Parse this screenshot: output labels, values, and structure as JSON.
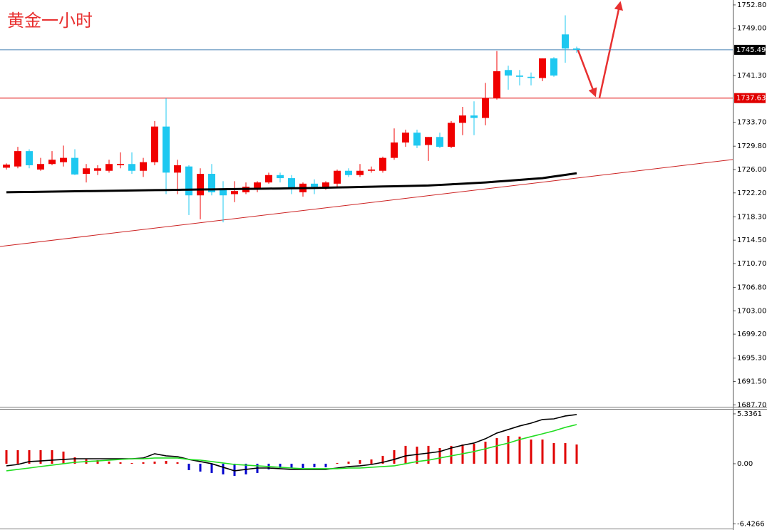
{
  "chart_data": [
    {
      "type": "candlestick",
      "title": "黄金一小时",
      "open": [
        1726.3,
        1726.5,
        1729.0,
        1726.0,
        1726.9,
        1727.2,
        1727.9,
        1725.3,
        1725.8,
        1725.8,
        1726.7,
        1726.9,
        1725.8,
        1727.2,
        1733.0,
        1725.5,
        1726.5,
        1721.8,
        1725.3,
        1722.7,
        1722.0,
        1722.3,
        1723.0,
        1723.9,
        1725.1,
        1724.6,
        1722.3,
        1723.7,
        1723.2,
        1723.7,
        1725.8,
        1725.1,
        1725.8,
        1725.8,
        1727.9,
        1730.4,
        1732.0,
        1730.0,
        1731.3,
        1729.7,
        1733.6,
        1734.8,
        1734.4,
        1737.6,
        1742.2,
        1741.3,
        1741.1,
        1740.9,
        1744.1,
        1748.0,
        1745.7
      ],
      "high": [
        1727.0,
        1729.7,
        1729.3,
        1727.9,
        1729.0,
        1729.9,
        1729.3,
        1726.9,
        1726.7,
        1727.6,
        1728.8,
        1728.8,
        1727.9,
        1733.9,
        1737.6,
        1727.6,
        1726.7,
        1726.2,
        1726.9,
        1724.1,
        1724.1,
        1723.9,
        1724.1,
        1725.5,
        1725.5,
        1725.1,
        1723.9,
        1724.4,
        1724.1,
        1726.0,
        1726.2,
        1726.9,
        1726.5,
        1728.1,
        1732.7,
        1732.5,
        1732.5,
        1731.3,
        1732.0,
        1733.9,
        1736.2,
        1737.1,
        1740.1,
        1745.3,
        1742.9,
        1742.2,
        1741.8,
        1744.1,
        1744.3,
        1751.1,
        1746.0
      ],
      "low": [
        1726.0,
        1726.2,
        1726.2,
        1725.8,
        1726.7,
        1726.5,
        1725.1,
        1723.9,
        1725.1,
        1725.5,
        1726.2,
        1725.3,
        1724.8,
        1726.7,
        1722.0,
        1722.0,
        1718.6,
        1717.9,
        1721.8,
        1717.4,
        1720.7,
        1722.0,
        1722.3,
        1723.7,
        1723.9,
        1722.0,
        1721.6,
        1722.0,
        1722.7,
        1723.2,
        1724.8,
        1724.8,
        1725.5,
        1725.5,
        1727.6,
        1729.7,
        1729.5,
        1727.4,
        1729.5,
        1729.5,
        1731.6,
        1731.6,
        1733.2,
        1737.4,
        1739.0,
        1739.7,
        1739.7,
        1740.4,
        1741.1,
        1743.4,
        1745.0
      ],
      "close": [
        1726.8,
        1729.0,
        1726.7,
        1726.9,
        1727.6,
        1727.9,
        1725.2,
        1726.2,
        1726.2,
        1726.9,
        1726.9,
        1725.8,
        1727.2,
        1733.0,
        1725.5,
        1726.7,
        1721.8,
        1725.3,
        1722.3,
        1721.8,
        1722.5,
        1723.2,
        1723.9,
        1725.1,
        1724.6,
        1723.0,
        1723.7,
        1723.2,
        1723.9,
        1725.8,
        1725.1,
        1725.8,
        1726.0,
        1727.9,
        1730.4,
        1732.0,
        1729.9,
        1731.3,
        1729.7,
        1733.6,
        1734.8,
        1734.4,
        1737.6,
        1742.0,
        1741.3,
        1741.1,
        1740.9,
        1744.1,
        1741.3,
        1745.7,
        1745.5
      ],
      "up_color": "#f00000",
      "down_color": "#1ec8f0",
      "ma": {
        "color": "#000000",
        "values": [
          1722.3,
          1722.33,
          1722.35,
          1722.38,
          1722.4,
          1722.43,
          1722.46,
          1722.49,
          1722.51,
          1722.54,
          1722.57,
          1722.59,
          1722.62,
          1722.65,
          1722.67,
          1722.7,
          1722.72,
          1722.75,
          1722.77,
          1722.8,
          1722.82,
          1722.85,
          1722.87,
          1722.9,
          1722.92,
          1722.95,
          1722.97,
          1723.0,
          1723.04,
          1723.08,
          1723.12,
          1723.16,
          1723.2,
          1723.24,
          1723.28,
          1723.32,
          1723.36,
          1723.4,
          1723.5,
          1723.6,
          1723.7,
          1723.8,
          1723.9,
          1724.04,
          1724.18,
          1724.32,
          1724.46,
          1724.6,
          1724.87,
          1725.13,
          1725.4
        ]
      },
      "price_lines": [
        {
          "value": 1745.49,
          "color": "#4682b4",
          "label_color": "#000000"
        },
        {
          "value": 1737.63,
          "color": "#e00000",
          "label_color": "#e00000"
        }
      ],
      "ylim": [
        1687.5,
        1753.6
      ],
      "yticks": [
        {
          "value": 1752.8,
          "label": "1752.80"
        },
        {
          "value": 1749,
          "label": "1749.00"
        },
        {
          "value": 1741.3,
          "label": "1741.30"
        },
        {
          "value": 1733.7,
          "label": "1733.70"
        },
        {
          "value": 1729.8,
          "label": "1729.80"
        },
        {
          "value": 1726,
          "label": "1726.00"
        },
        {
          "value": 1722.2,
          "label": "1722.20"
        },
        {
          "value": 1718.3,
          "label": "1718.30"
        },
        {
          "value": 1714.5,
          "label": "1714.50"
        },
        {
          "value": 1710.7,
          "label": "1710.70"
        },
        {
          "value": 1706.8,
          "label": "1706.80"
        },
        {
          "value": 1703,
          "label": "1703.00"
        },
        {
          "value": 1699.2,
          "label": "1699.20"
        },
        {
          "value": 1695.3,
          "label": "1695.30"
        },
        {
          "value": 1691.5,
          "label": "1691.50"
        },
        {
          "value": 1687.7,
          "label": "1687.70"
        }
      ]
    },
    {
      "type": "macd",
      "histogram": {
        "pos_color": "#e00000",
        "neg_color": "#0000cc",
        "values": [
          1.45,
          1.45,
          1.45,
          1.45,
          1.45,
          1.3,
          0.69,
          0.46,
          0.38,
          0.23,
          0.15,
          0.08,
          0.15,
          0.23,
          0.3,
          0.15,
          -0.69,
          -0.84,
          -0.99,
          -1.14,
          -1.3,
          -1.14,
          -0.99,
          -0.61,
          -0.46,
          -0.46,
          -0.46,
          -0.38,
          -0.38,
          0.08,
          0.23,
          0.38,
          0.46,
          0.84,
          1.45,
          1.91,
          1.83,
          1.91,
          1.68,
          1.91,
          2.06,
          2.13,
          2.36,
          2.74,
          2.97,
          2.9,
          2.59,
          2.59,
          2.21,
          2.21,
          2.06
        ]
      },
      "series": [
        {
          "color": "#000000",
          "values": [
            -0.23,
            -0.08,
            0.23,
            0.3,
            0.38,
            0.46,
            0.53,
            0.53,
            0.53,
            0.53,
            0.53,
            0.53,
            0.61,
            1.07,
            0.84,
            0.76,
            0.46,
            0.23,
            0,
            -0.38,
            -0.76,
            -0.61,
            -0.46,
            -0.46,
            -0.53,
            -0.61,
            -0.61,
            -0.61,
            -0.61,
            -0.46,
            -0.3,
            -0.23,
            -0.08,
            0.15,
            0.46,
            0.84,
            0.99,
            1.14,
            1.3,
            1.68,
            1.98,
            2.21,
            2.67,
            3.28,
            3.66,
            4.04,
            4.34,
            4.73,
            4.8,
            5.11,
            5.26
          ]
        },
        {
          "color": "#22dd22",
          "values": [
            -0.76,
            -0.61,
            -0.46,
            -0.3,
            -0.15,
            0,
            0.15,
            0.23,
            0.3,
            0.38,
            0.46,
            0.53,
            0.53,
            0.61,
            0.61,
            0.61,
            0.46,
            0.38,
            0.23,
            0.08,
            -0.08,
            -0.15,
            -0.23,
            -0.3,
            -0.38,
            -0.46,
            -0.53,
            -0.53,
            -0.53,
            -0.53,
            -0.46,
            -0.46,
            -0.38,
            -0.3,
            -0.23,
            0,
            0.23,
            0.38,
            0.61,
            0.84,
            1.07,
            1.3,
            1.6,
            1.91,
            2.21,
            2.59,
            2.9,
            3.2,
            3.51,
            3.89,
            4.19
          ]
        }
      ],
      "ylim": [
        -6.94,
        5.79
      ],
      "yticks": [
        5.3361,
        {
          "value": 0,
          "label": "0.00"
        },
        -6.4266
      ]
    }
  ]
}
